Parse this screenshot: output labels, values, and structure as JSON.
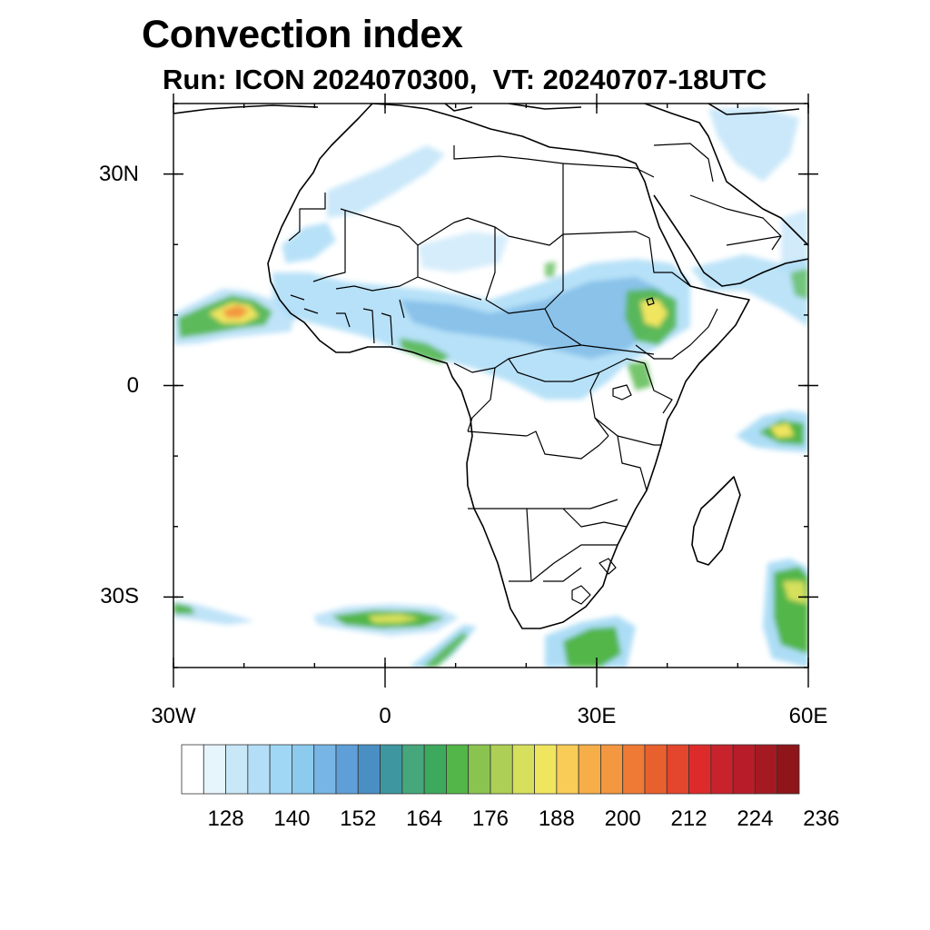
{
  "title": "Convection index",
  "subtitle": "Run: ICON 2024070300,  VT: 20240707-18UTC",
  "map": {
    "lon_range": [
      -30,
      60
    ],
    "lat_range": [
      -40,
      40
    ],
    "lat_ticks": [
      {
        "value": 30,
        "label": "30N"
      },
      {
        "value": 0,
        "label": "0"
      },
      {
        "value": -30,
        "label": "30S"
      }
    ],
    "lon_ticks": [
      {
        "value": -30,
        "label": "30W"
      },
      {
        "value": 0,
        "label": "0"
      },
      {
        "value": 30,
        "label": "30E"
      },
      {
        "value": 60,
        "label": "60E"
      }
    ]
  },
  "colorbar": {
    "labels": [
      "128",
      "140",
      "152",
      "164",
      "176",
      "188",
      "200",
      "212",
      "224",
      "236"
    ],
    "colors": [
      "#ffffff",
      "#e6f4fc",
      "#c8e7f7",
      "#b4def7",
      "#9fd7f5",
      "#8ccaee",
      "#77b5e4",
      "#5f9fd8",
      "#4a8fc4",
      "#3e96a0",
      "#46a67c",
      "#3da95c",
      "#52b649",
      "#8ac450",
      "#aecf55",
      "#d6e05c",
      "#f0e55e",
      "#f8cc56",
      "#f6ae48",
      "#f39740",
      "#ee7a35",
      "#e9602f",
      "#e3452d",
      "#dd2b2b",
      "#c8222c",
      "#b81c29",
      "#a51a22",
      "#8e1519"
    ]
  }
}
